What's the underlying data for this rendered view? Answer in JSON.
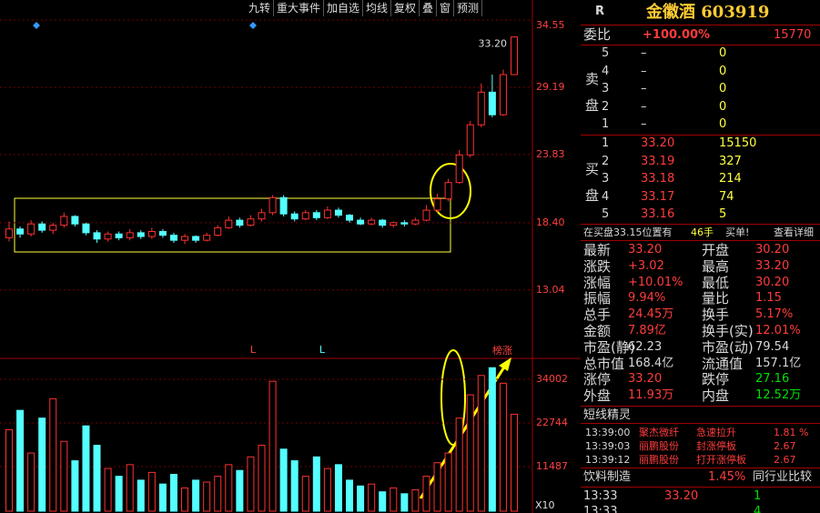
{
  "toolbar": [
    "九转",
    "重大事件",
    "加自选",
    "均线",
    "复权",
    "叠",
    "窗",
    "预测"
  ],
  "kline": {
    "ylim": [
      7.88,
      34.55
    ],
    "yticks": [
      34.55,
      29.19,
      23.83,
      {
        "value": 18.4,
        "label": "18.40"
      },
      13.04
    ],
    "open": [
      17.2,
      17.9,
      17.5,
      18.3,
      17.8,
      18.2,
      18.9,
      18.3,
      17.6,
      17.1,
      17.5,
      17.2,
      17.6,
      17.3,
      17.7,
      17.4,
      17.0,
      17.3,
      17.0,
      17.4,
      18.0,
      18.6,
      18.2,
      18.7,
      19.2,
      20.4,
      19.1,
      18.7,
      19.2,
      18.8,
      19.4,
      19.0,
      18.6,
      18.3,
      18.6,
      18.2,
      18.4,
      18.3,
      18.6,
      19.4,
      20.3,
      21.6,
      23.8,
      26.2,
      28.8,
      27.0,
      30.2
    ],
    "close": [
      17.9,
      17.5,
      18.3,
      17.8,
      18.2,
      18.9,
      18.3,
      17.6,
      17.1,
      17.5,
      17.2,
      17.6,
      17.3,
      17.7,
      17.4,
      17.0,
      17.3,
      17.0,
      17.4,
      18.0,
      18.6,
      18.2,
      18.7,
      19.2,
      20.4,
      19.1,
      18.7,
      19.2,
      18.8,
      19.4,
      19.0,
      18.6,
      18.3,
      18.6,
      18.2,
      18.4,
      18.3,
      18.6,
      19.4,
      20.3,
      21.6,
      23.8,
      26.2,
      28.8,
      27.0,
      30.2,
      33.2
    ],
    "high": [
      18.5,
      18.1,
      18.6,
      18.5,
      18.4,
      19.2,
      19.0,
      18.4,
      17.8,
      17.7,
      17.7,
      17.9,
      17.8,
      18.0,
      17.9,
      17.6,
      17.5,
      17.4,
      17.6,
      18.2,
      18.9,
      18.8,
      19.0,
      19.5,
      20.6,
      20.6,
      19.3,
      19.4,
      19.4,
      19.7,
      19.6,
      19.1,
      18.8,
      18.8,
      18.7,
      18.5,
      18.6,
      18.8,
      19.8,
      20.7,
      21.9,
      24.2,
      26.5,
      29.5,
      30.2,
      30.6,
      33.2
    ],
    "low": [
      16.9,
      17.2,
      17.3,
      17.6,
      17.5,
      18.0,
      18.1,
      17.4,
      16.8,
      16.9,
      17.0,
      17.0,
      17.1,
      17.1,
      17.2,
      16.8,
      16.7,
      16.8,
      16.9,
      17.3,
      17.9,
      18.0,
      18.1,
      18.5,
      19.0,
      18.9,
      18.5,
      18.6,
      18.6,
      18.7,
      18.8,
      18.4,
      18.2,
      18.2,
      18.0,
      18.0,
      18.1,
      18.2,
      18.5,
      19.2,
      20.1,
      21.5,
      23.6,
      26.0,
      26.8,
      26.9,
      30.2
    ],
    "last_label": "33.20"
  },
  "volume": {
    "ylim": [
      0,
      38000
    ],
    "yticks": [
      34002,
      22744,
      11487
    ],
    "unit": "X10",
    "values": [
      21000,
      26000,
      15000,
      24000,
      29000,
      18000,
      13000,
      22000,
      17000,
      11000,
      9000,
      12000,
      8000,
      10000,
      7000,
      9500,
      6000,
      8000,
      7500,
      9000,
      12000,
      10500,
      14000,
      17000,
      33500,
      16000,
      13000,
      9000,
      14000,
      11000,
      12000,
      8000,
      6500,
      7000,
      5000,
      6000,
      4500,
      5500,
      9000,
      12500,
      15000,
      24000,
      30000,
      35000,
      37000,
      33000,
      25000
    ]
  },
  "annotations": {
    "marks": [
      "L",
      "L"
    ],
    "tag": "榜涨"
  },
  "quote": {
    "letter": "R",
    "title": "金徽酒 603919",
    "weibi": [
      "委比",
      "+100.00%",
      "15770"
    ],
    "sell_label": "卖盘",
    "sell": [
      [
        "5",
        "–",
        "0"
      ],
      [
        "4",
        "–",
        "0"
      ],
      [
        "3",
        "–",
        "0"
      ],
      [
        "2",
        "–",
        "0"
      ],
      [
        "1",
        "–",
        "0"
      ]
    ],
    "buy_label": "买盘",
    "buy": [
      [
        "1",
        "33.20",
        "15150"
      ],
      [
        "2",
        "33.19",
        "327"
      ],
      [
        "3",
        "33.18",
        "214"
      ],
      [
        "4",
        "33.17",
        "74"
      ],
      [
        "5",
        "33.16",
        "5"
      ]
    ],
    "notice": [
      "在买盘33.15位置有",
      "46手",
      "买单!",
      "查看详细"
    ],
    "stats": [
      [
        "最新",
        "33.20",
        "开盘",
        "30.20"
      ],
      [
        "涨跌",
        "+3.02",
        "最高",
        "33.20"
      ],
      [
        "涨幅",
        "+10.01%",
        "最低",
        "30.20"
      ],
      [
        "振幅",
        "9.94%",
        "量比",
        "1.15"
      ],
      [
        "总手",
        "24.45万",
        "换手",
        "5.17%"
      ],
      [
        "金额",
        "7.89亿",
        "换手(实)",
        "12.01%"
      ],
      [
        "市盈(静)",
        "62.23",
        "市盈(动)",
        "79.54"
      ],
      [
        "总市值",
        "168.4亿",
        "流通值",
        "157.1亿"
      ],
      [
        "涨停",
        "33.20",
        "跌停",
        "27.16"
      ],
      [
        "外盘",
        "11.93万",
        "内盘",
        "12.52万"
      ]
    ],
    "elf_title": "短线精灵",
    "elf": [
      [
        "13:39:00",
        "聚杰微纤",
        "急速拉升",
        "1.81 %"
      ],
      [
        "13:39:03",
        "丽鹏股份",
        "封涨停板",
        "2.67"
      ],
      [
        "13:39:12",
        "丽鹏股份",
        "打开涨停板",
        "2.67"
      ]
    ],
    "industry": [
      "饮料制造",
      "1.45%",
      "同行业比较"
    ],
    "ticks": [
      [
        "13:33",
        "33.20",
        "1"
      ],
      [
        "13:33",
        "",
        "4"
      ]
    ]
  }
}
